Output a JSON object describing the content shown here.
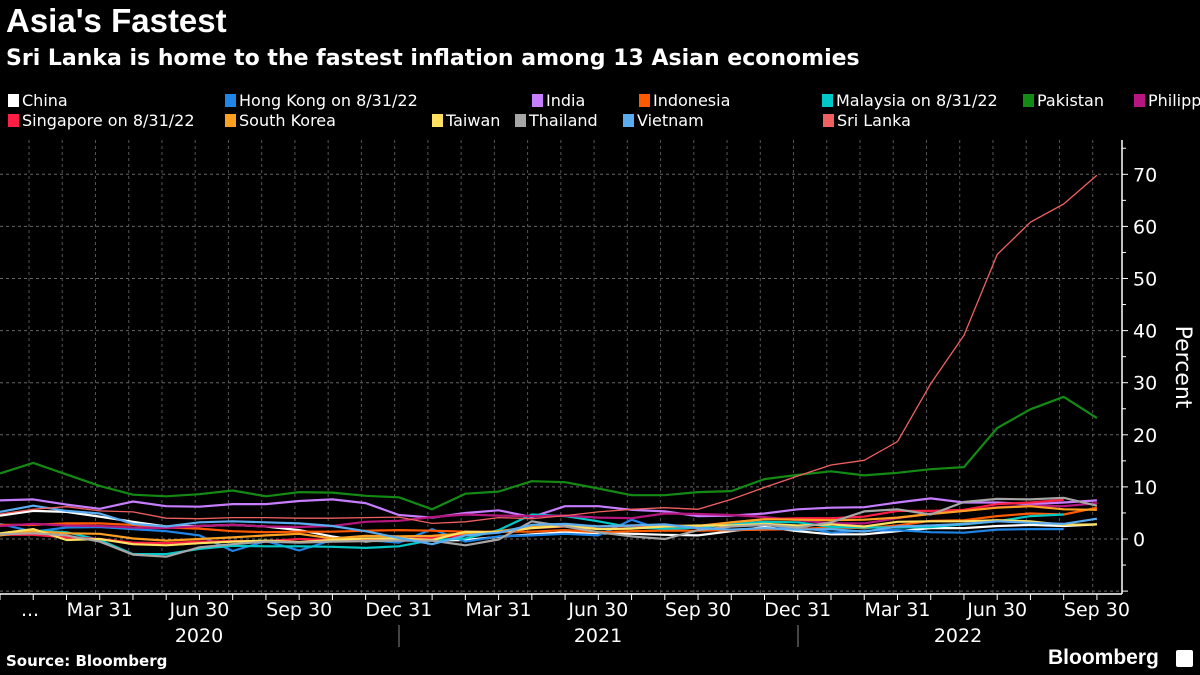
{
  "title": "Asia's Fastest",
  "subtitle": "Sri Lanka is home to the fastest inflation among 13 Asian economies",
  "footer": {
    "source": "Source: Bloomberg",
    "brand": "Bloomberg"
  },
  "chart_data": {
    "type": "line",
    "ylabel": "Percent",
    "ylim": [
      -10,
      75
    ],
    "yticks": [
      "70",
      "60",
      "50",
      "40",
      "30",
      "20",
      "10",
      "0"
    ],
    "ytick_values": [
      70,
      60,
      50,
      40,
      30,
      20,
      10,
      0
    ],
    "grid": true,
    "legend_position": "top",
    "x": [
      "2019-12",
      "2020-01",
      "2020-02",
      "2020-03",
      "2020-04",
      "2020-05",
      "2020-06",
      "2020-07",
      "2020-08",
      "2020-09",
      "2020-10",
      "2020-11",
      "2020-12",
      "2021-01",
      "2021-02",
      "2021-03",
      "2021-04",
      "2021-05",
      "2021-06",
      "2021-07",
      "2021-08",
      "2021-09",
      "2021-10",
      "2021-11",
      "2021-12",
      "2022-01",
      "2022-02",
      "2022-03",
      "2022-04",
      "2022-05",
      "2022-06",
      "2022-07",
      "2022-08",
      "2022-09"
    ],
    "xtick_labels": [
      "...",
      "Mar 31",
      "Jun 30",
      "Sep 30",
      "Dec 31",
      "Mar 31",
      "Jun 30",
      "Sep 30",
      "Dec 31",
      "Mar 31",
      "Jun 30",
      "Sep 30"
    ],
    "xtick_months": [
      0,
      3,
      6,
      9,
      12,
      15,
      18,
      21,
      24,
      27,
      30,
      33
    ],
    "year_labels": [
      "2020",
      "2021",
      "2022"
    ],
    "series": [
      {
        "name": "China",
        "color": "#ffffff",
        "values": [
          4.5,
          5.4,
          5.2,
          4.3,
          3.3,
          2.4,
          2.5,
          2.7,
          2.4,
          1.7,
          0.5,
          -0.5,
          0.2,
          -0.3,
          -0.2,
          0.4,
          0.9,
          1.3,
          1.1,
          1.0,
          0.8,
          0.7,
          1.5,
          2.3,
          1.5,
          0.9,
          0.9,
          1.5,
          2.1,
          2.1,
          2.5,
          2.7,
          2.5,
          2.8
        ]
      },
      {
        "name": "Hong Kong on 8/31/22",
        "color": "#1f86e8",
        "values": [
          2.9,
          1.4,
          2.2,
          2.3,
          1.9,
          1.5,
          0.7,
          -2.3,
          -0.4,
          -2.2,
          -0.2,
          -0.2,
          -0.7,
          1.9,
          -0.5,
          0.5,
          0.7,
          1.0,
          0.7,
          3.7,
          1.6,
          2.3,
          1.7,
          1.8,
          2.4,
          1.2,
          1.6,
          1.7,
          1.3,
          1.2,
          1.8,
          1.9,
          1.9,
          null
        ]
      },
      {
        "name": "India",
        "color": "#c77dff",
        "values": [
          7.4,
          7.6,
          6.6,
          5.8,
          7.2,
          6.3,
          6.2,
          6.7,
          6.7,
          7.3,
          7.6,
          6.9,
          4.6,
          4.1,
          5.0,
          5.5,
          4.2,
          6.3,
          6.3,
          5.6,
          5.3,
          4.4,
          4.5,
          4.9,
          5.7,
          6.0,
          6.1,
          7.0,
          7.8,
          7.0,
          7.0,
          6.7,
          7.0,
          7.4
        ]
      },
      {
        "name": "Indonesia",
        "color": "#ff5a00",
        "values": [
          2.7,
          2.7,
          3.0,
          3.0,
          2.7,
          2.2,
          2.0,
          1.5,
          1.3,
          1.4,
          1.4,
          1.6,
          1.7,
          1.6,
          1.4,
          1.4,
          1.4,
          1.7,
          1.3,
          1.5,
          1.6,
          1.6,
          1.7,
          1.8,
          1.9,
          2.2,
          2.1,
          2.6,
          3.5,
          3.6,
          4.4,
          4.9,
          4.7,
          6.0
        ]
      },
      {
        "name": "Malaysia on 8/31/22",
        "color": "#00c8c8",
        "values": [
          1.0,
          1.6,
          1.3,
          -0.2,
          -2.9,
          -2.9,
          -1.9,
          -1.3,
          -1.4,
          -1.4,
          -1.5,
          -1.7,
          -1.4,
          -0.2,
          0.1,
          1.7,
          4.7,
          4.4,
          3.4,
          2.2,
          2.0,
          2.2,
          2.9,
          3.3,
          3.2,
          2.3,
          2.2,
          2.2,
          2.3,
          2.8,
          3.4,
          4.4,
          4.7,
          null
        ]
      },
      {
        "name": "Pakistan",
        "color": "#138a13",
        "values": [
          12.6,
          14.6,
          12.4,
          10.2,
          8.5,
          8.2,
          8.6,
          9.3,
          8.2,
          9.0,
          8.9,
          8.3,
          8.0,
          5.7,
          8.7,
          9.1,
          11.1,
          10.9,
          9.7,
          8.4,
          8.4,
          9.0,
          9.2,
          11.5,
          12.3,
          13.0,
          12.2,
          12.7,
          13.4,
          13.8,
          21.3,
          24.9,
          27.3,
          23.2
        ]
      },
      {
        "name": "Philippines",
        "color": "#b5177f",
        "values": [
          2.5,
          2.9,
          2.6,
          2.5,
          2.2,
          2.1,
          2.5,
          2.7,
          2.4,
          2.3,
          2.5,
          3.3,
          3.5,
          4.2,
          4.7,
          4.5,
          4.4,
          4.5,
          4.1,
          4.0,
          4.9,
          4.8,
          4.6,
          4.2,
          3.6,
          3.0,
          3.0,
          4.0,
          4.9,
          5.4,
          6.1,
          6.4,
          6.3,
          6.9
        ]
      },
      {
        "name": "Singapore on 8/31/22",
        "color": "#ff1f44",
        "values": [
          0.8,
          0.8,
          0.3,
          0.0,
          -0.7,
          -0.8,
          -0.5,
          -0.4,
          -0.4,
          0.0,
          -0.2,
          -0.1,
          0.0,
          0.2,
          0.7,
          1.3,
          2.1,
          2.4,
          2.4,
          2.5,
          2.4,
          2.5,
          3.2,
          3.8,
          4.0,
          4.0,
          4.3,
          5.4,
          5.4,
          5.6,
          6.7,
          7.0,
          7.5,
          null
        ]
      },
      {
        "name": "South Korea",
        "color": "#ffa020",
        "values": [
          0.7,
          1.5,
          1.1,
          1.0,
          0.1,
          -0.3,
          0.0,
          0.3,
          0.7,
          1.0,
          0.1,
          0.6,
          0.5,
          0.6,
          1.1,
          1.5,
          2.3,
          2.6,
          2.4,
          2.6,
          2.6,
          2.5,
          3.2,
          3.8,
          3.7,
          3.6,
          3.7,
          4.1,
          4.8,
          5.4,
          6.0,
          6.3,
          5.7,
          5.6
        ]
      },
      {
        "name": "Taiwan",
        "color": "#ffe060",
        "values": [
          1.1,
          1.9,
          -0.2,
          0.0,
          -1.0,
          -1.2,
          -0.8,
          -0.5,
          -0.3,
          -0.6,
          -0.2,
          0.1,
          0.1,
          -0.2,
          1.4,
          1.3,
          2.1,
          2.5,
          1.9,
          2.0,
          2.4,
          2.6,
          2.6,
          2.9,
          2.6,
          2.8,
          2.4,
          3.3,
          3.4,
          3.4,
          3.6,
          3.4,
          2.7,
          2.8
        ]
      },
      {
        "name": "Thailand",
        "color": "#a6a6a6",
        "values": [
          0.9,
          1.1,
          0.7,
          -0.5,
          -3.0,
          -3.4,
          -1.6,
          -1.0,
          -0.5,
          -0.7,
          -0.5,
          -0.4,
          -0.3,
          -0.3,
          -1.2,
          -0.1,
          3.4,
          2.4,
          1.3,
          0.5,
          0.0,
          1.7,
          2.4,
          2.7,
          2.2,
          3.2,
          5.3,
          5.7,
          4.7,
          7.1,
          7.7,
          7.6,
          7.9,
          6.4
        ]
      },
      {
        "name": "Vietnam",
        "color": "#5aacf0",
        "values": [
          5.2,
          6.4,
          5.4,
          4.9,
          2.9,
          2.4,
          3.2,
          3.4,
          3.2,
          3.0,
          2.5,
          1.5,
          0.2,
          -1.0,
          0.7,
          1.2,
          2.7,
          2.9,
          2.4,
          2.6,
          2.8,
          2.1,
          1.8,
          2.1,
          1.8,
          1.9,
          1.4,
          2.4,
          2.6,
          2.9,
          3.4,
          3.1,
          2.9,
          3.9
        ]
      },
      {
        "name": "Sri Lanka",
        "color": "#f06060",
        "values": [
          4.8,
          5.7,
          6.2,
          5.4,
          5.2,
          4.0,
          3.9,
          4.1,
          4.1,
          4.0,
          4.0,
          4.1,
          4.2,
          3.0,
          3.3,
          4.1,
          3.9,
          4.5,
          5.2,
          5.7,
          6.0,
          5.7,
          7.6,
          9.9,
          12.1,
          14.2,
          15.1,
          18.7,
          29.8,
          39.1,
          54.6,
          60.8,
          64.3,
          69.8
        ]
      }
    ]
  }
}
